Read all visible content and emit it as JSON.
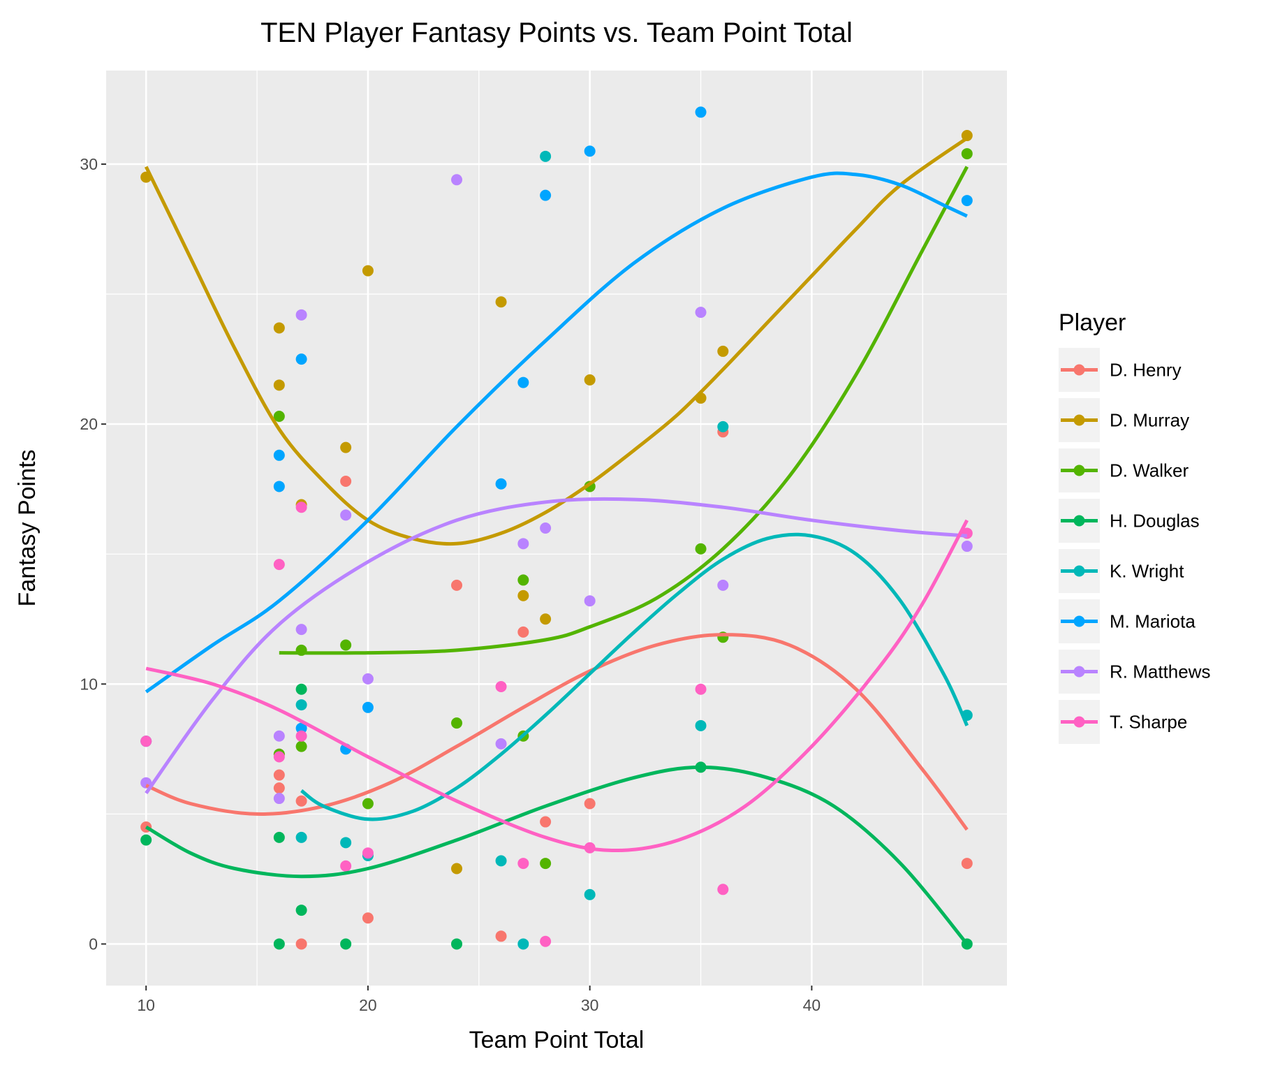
{
  "chart_data": {
    "type": "scatter",
    "title": "TEN Player Fantasy Points vs. Team Point Total",
    "xlabel": "Team Point Total",
    "ylabel": "Fantasy Points",
    "xlim": [
      8.2,
      48.8
    ],
    "ylim": [
      -1.6,
      33.6
    ],
    "xticks": [
      10,
      20,
      30,
      40
    ],
    "yticks": [
      0,
      10,
      20,
      30
    ],
    "grid": true,
    "legend": {
      "title": "Player",
      "placement": "right"
    },
    "series": [
      {
        "name": "D. Henry",
        "color": "#F8766D",
        "points": [
          [
            10,
            7.8
          ],
          [
            10,
            4.5
          ],
          [
            16,
            6.5
          ],
          [
            16,
            6
          ],
          [
            16,
            7.3
          ],
          [
            17,
            0
          ],
          [
            17,
            5.5
          ],
          [
            19,
            17.8
          ],
          [
            20,
            1
          ],
          [
            24,
            13.8
          ],
          [
            26,
            0.3
          ],
          [
            27,
            12
          ],
          [
            28,
            4.7
          ],
          [
            30,
            5.4
          ],
          [
            36,
            19.7
          ],
          [
            47,
            3.1
          ]
        ],
        "trend": [
          [
            10,
            6.1
          ],
          [
            12,
            5.4
          ],
          [
            15,
            5
          ],
          [
            18,
            5.3
          ],
          [
            21,
            6.2
          ],
          [
            24,
            7.6
          ],
          [
            27,
            9.1
          ],
          [
            30,
            10.5
          ],
          [
            33,
            11.5
          ],
          [
            36,
            11.9
          ],
          [
            39,
            11.5
          ],
          [
            42,
            9.8
          ],
          [
            45,
            6.7
          ],
          [
            47,
            4.4
          ]
        ]
      },
      {
        "name": "D. Murray",
        "color": "#C49A00",
        "points": [
          [
            10,
            29.5
          ],
          [
            16,
            23.7
          ],
          [
            16,
            21.5
          ],
          [
            17,
            16.9
          ],
          [
            19,
            19.1
          ],
          [
            20,
            25.9
          ],
          [
            24,
            2.9
          ],
          [
            26,
            24.7
          ],
          [
            27,
            13.4
          ],
          [
            28,
            12.5
          ],
          [
            30,
            21.7
          ],
          [
            30,
            17.6
          ],
          [
            35,
            21
          ],
          [
            36,
            22.8
          ],
          [
            47,
            31.1
          ]
        ],
        "trend": [
          [
            10,
            29.9
          ],
          [
            12,
            26.4
          ],
          [
            14,
            22.9
          ],
          [
            16,
            19.8
          ],
          [
            18,
            17.8
          ],
          [
            20,
            16.3
          ],
          [
            22,
            15.6
          ],
          [
            24,
            15.4
          ],
          [
            26,
            15.8
          ],
          [
            28,
            16.6
          ],
          [
            30,
            17.7
          ],
          [
            32,
            19
          ],
          [
            34,
            20.4
          ],
          [
            36,
            22.1
          ],
          [
            38,
            23.9
          ],
          [
            40,
            25.7
          ],
          [
            42,
            27.5
          ],
          [
            44,
            29.2
          ],
          [
            47,
            31
          ]
        ]
      },
      {
        "name": "D. Walker",
        "color": "#53B400",
        "points": [
          [
            16,
            20.3
          ],
          [
            16,
            7.3
          ],
          [
            17,
            11.3
          ],
          [
            17,
            7.6
          ],
          [
            19,
            11.5
          ],
          [
            20,
            5.4
          ],
          [
            24,
            8.5
          ],
          [
            27,
            14
          ],
          [
            27,
            8
          ],
          [
            28,
            3.1
          ],
          [
            30,
            17.6
          ],
          [
            35,
            15.2
          ],
          [
            36,
            11.8
          ],
          [
            47,
            30.4
          ]
        ],
        "trend": [
          [
            16,
            11.2
          ],
          [
            20,
            11.2
          ],
          [
            24,
            11.3
          ],
          [
            28,
            11.7
          ],
          [
            30,
            12.2
          ],
          [
            33,
            13.3
          ],
          [
            36,
            15.2
          ],
          [
            39,
            18
          ],
          [
            42,
            21.9
          ],
          [
            45,
            26.7
          ],
          [
            47,
            29.9
          ]
        ]
      },
      {
        "name": "H. Douglas",
        "color": "#00B65C",
        "points": [
          [
            10,
            4
          ],
          [
            16,
            4.1
          ],
          [
            16,
            0
          ],
          [
            17,
            9.8
          ],
          [
            17,
            1.3
          ],
          [
            19,
            0
          ],
          [
            24,
            0
          ],
          [
            35,
            6.8
          ],
          [
            47,
            0
          ]
        ],
        "trend": [
          [
            10,
            4.5
          ],
          [
            12,
            3.5
          ],
          [
            14,
            2.9
          ],
          [
            17,
            2.6
          ],
          [
            20,
            2.9
          ],
          [
            24,
            4
          ],
          [
            28,
            5.3
          ],
          [
            32,
            6.4
          ],
          [
            35,
            6.8
          ],
          [
            38,
            6.4
          ],
          [
            41,
            5.3
          ],
          [
            44,
            3.1
          ],
          [
            47,
            0
          ]
        ]
      },
      {
        "name": "K. Wright",
        "color": "#00B8B8",
        "points": [
          [
            17,
            9.2
          ],
          [
            17,
            4.1
          ],
          [
            19,
            3.9
          ],
          [
            20,
            3.4
          ],
          [
            26,
            3.2
          ],
          [
            27,
            0
          ],
          [
            28,
            30.3
          ],
          [
            30,
            1.9
          ],
          [
            35,
            8.4
          ],
          [
            36,
            19.9
          ],
          [
            47,
            8.8
          ]
        ],
        "trend": [
          [
            17,
            5.9
          ],
          [
            18,
            5.3
          ],
          [
            20,
            4.8
          ],
          [
            22,
            5.1
          ],
          [
            24,
            6
          ],
          [
            26,
            7.3
          ],
          [
            28,
            8.8
          ],
          [
            30,
            10.4
          ],
          [
            32,
            12
          ],
          [
            34,
            13.5
          ],
          [
            36,
            14.8
          ],
          [
            38,
            15.6
          ],
          [
            40,
            15.7
          ],
          [
            42,
            15
          ],
          [
            44,
            13.2
          ],
          [
            46,
            10.3
          ],
          [
            47,
            8.4
          ]
        ]
      },
      {
        "name": "M. Mariota",
        "color": "#00A5FF",
        "points": [
          [
            10,
            7.8
          ],
          [
            16,
            18.8
          ],
          [
            16,
            17.6
          ],
          [
            17,
            22.5
          ],
          [
            17,
            8.3
          ],
          [
            19,
            7.5
          ],
          [
            20,
            9.1
          ],
          [
            26,
            17.7
          ],
          [
            27,
            21.6
          ],
          [
            28,
            28.8
          ],
          [
            30,
            30.5
          ],
          [
            35,
            32
          ],
          [
            47,
            28.6
          ]
        ],
        "trend": [
          [
            10,
            9.7
          ],
          [
            13,
            11.5
          ],
          [
            16,
            13.2
          ],
          [
            20,
            16.3
          ],
          [
            24,
            19.9
          ],
          [
            28,
            23.2
          ],
          [
            32,
            26.2
          ],
          [
            36,
            28.3
          ],
          [
            40,
            29.5
          ],
          [
            42,
            29.6
          ],
          [
            44,
            29.2
          ],
          [
            46,
            28.4
          ],
          [
            47,
            28
          ]
        ]
      },
      {
        "name": "R. Matthews",
        "color": "#B983FF",
        "points": [
          [
            10,
            6.2
          ],
          [
            16,
            5.6
          ],
          [
            16,
            8
          ],
          [
            17,
            24.2
          ],
          [
            17,
            12.1
          ],
          [
            19,
            16.5
          ],
          [
            20,
            10.2
          ],
          [
            24,
            29.4
          ],
          [
            26,
            7.7
          ],
          [
            27,
            15.4
          ],
          [
            28,
            16
          ],
          [
            30,
            13.2
          ],
          [
            35,
            24.3
          ],
          [
            36,
            13.8
          ],
          [
            47,
            15.3
          ]
        ],
        "trend": [
          [
            10,
            5.8
          ],
          [
            13,
            9.4
          ],
          [
            16,
            12.3
          ],
          [
            20,
            14.7
          ],
          [
            24,
            16.3
          ],
          [
            28,
            17
          ],
          [
            32,
            17.1
          ],
          [
            36,
            16.8
          ],
          [
            40,
            16.3
          ],
          [
            44,
            15.9
          ],
          [
            47,
            15.7
          ]
        ]
      },
      {
        "name": "T. Sharpe",
        "color": "#FF61C3",
        "points": [
          [
            10,
            7.8
          ],
          [
            16,
            14.6
          ],
          [
            16,
            7.2
          ],
          [
            17,
            16.8
          ],
          [
            17,
            8
          ],
          [
            19,
            3
          ],
          [
            20,
            3.5
          ],
          [
            26,
            9.9
          ],
          [
            27,
            3.1
          ],
          [
            28,
            0.1
          ],
          [
            30,
            3.7
          ],
          [
            35,
            9.8
          ],
          [
            36,
            2.1
          ],
          [
            47,
            15.8
          ]
        ],
        "trend": [
          [
            10,
            10.6
          ],
          [
            13,
            10
          ],
          [
            16,
            9
          ],
          [
            20,
            7.2
          ],
          [
            24,
            5.5
          ],
          [
            28,
            4.1
          ],
          [
            31,
            3.6
          ],
          [
            34,
            4
          ],
          [
            37,
            5.3
          ],
          [
            40,
            7.6
          ],
          [
            43,
            10.6
          ],
          [
            45,
            13.1
          ],
          [
            47,
            16.3
          ]
        ]
      }
    ]
  }
}
